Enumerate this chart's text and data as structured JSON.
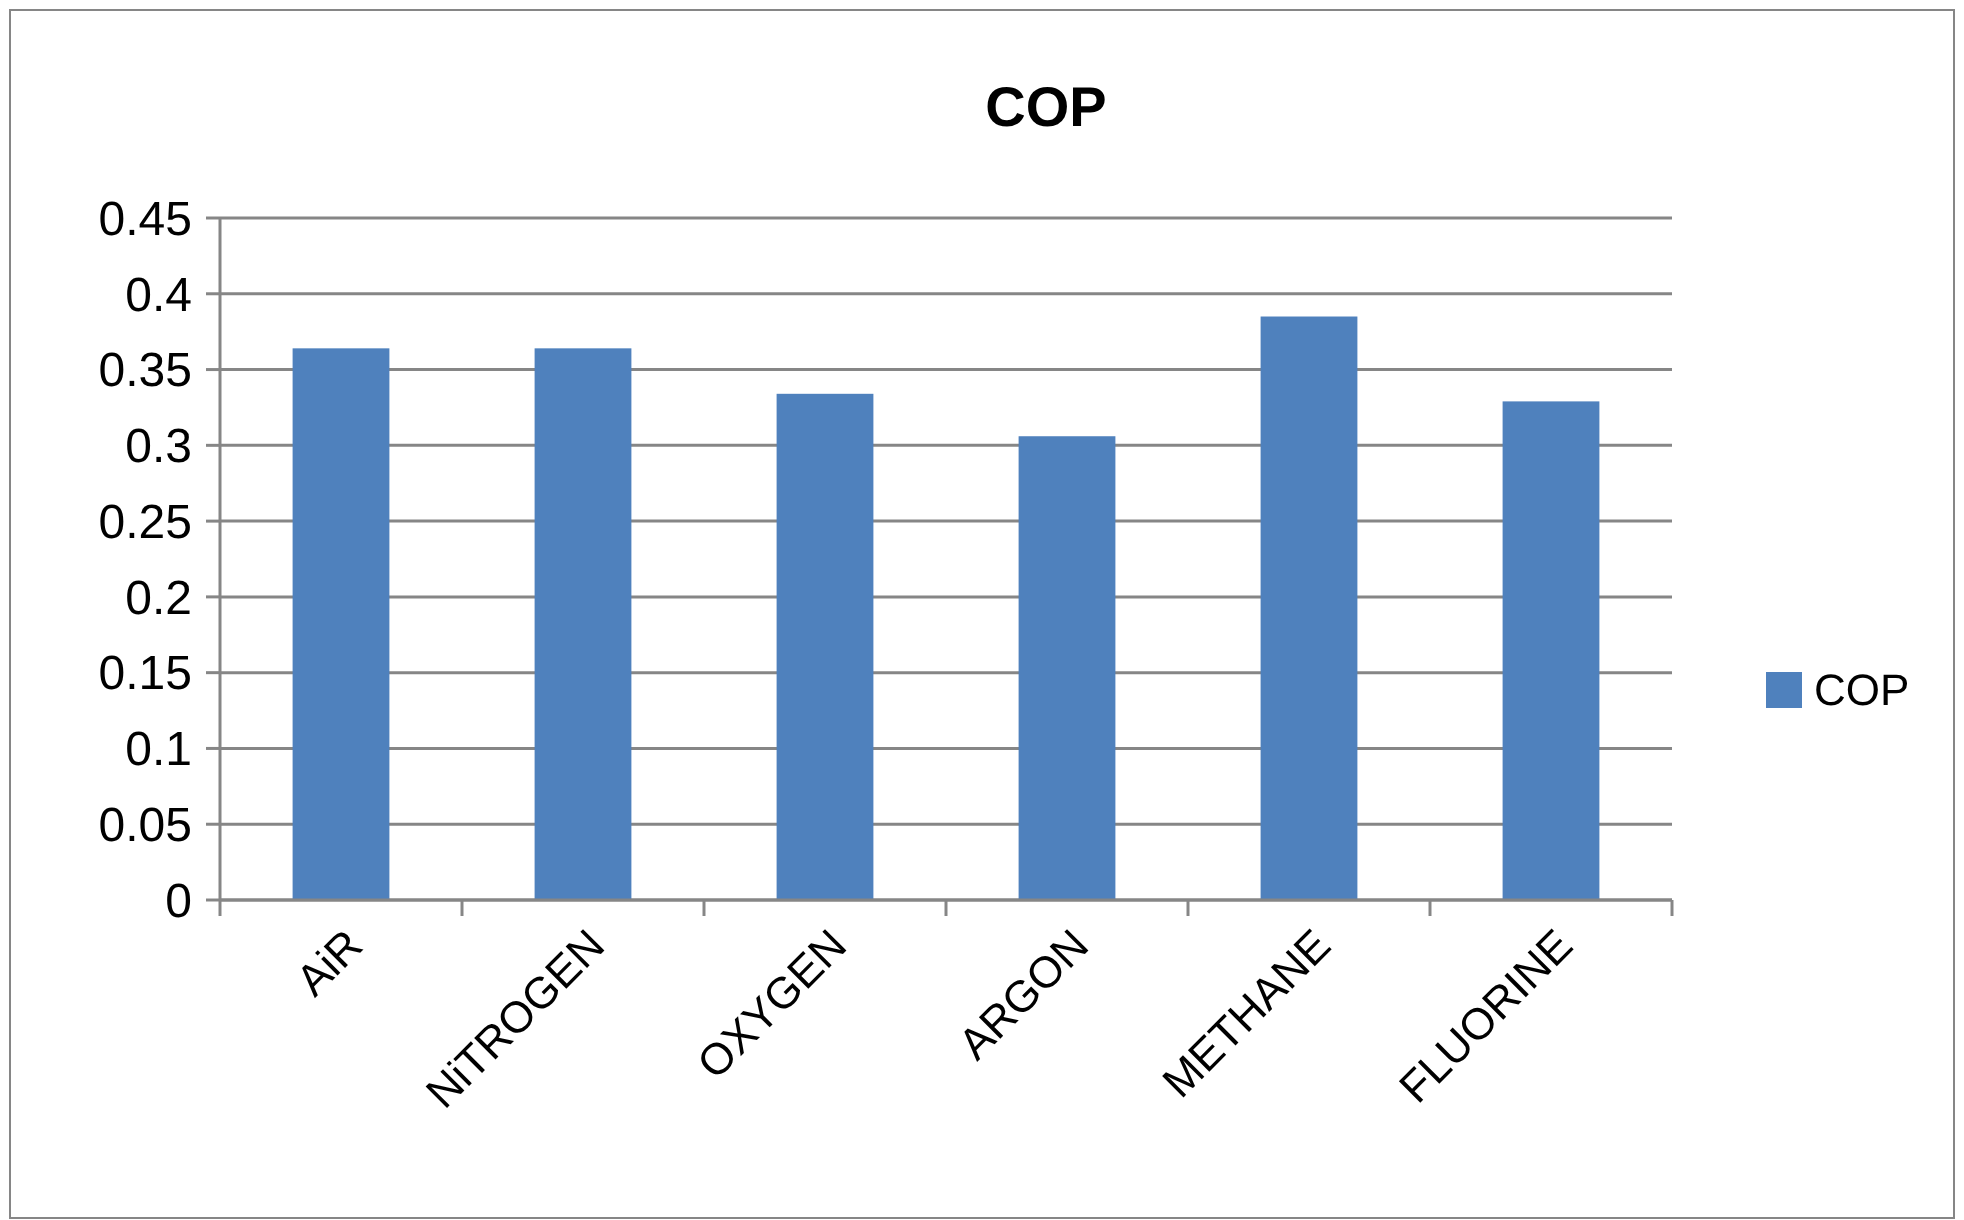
{
  "chart_data": {
    "type": "bar",
    "title": "COP",
    "categories": [
      "AiR",
      "NiTROGEN",
      "OXYGEN",
      "ARGON",
      "METHANE",
      "FLUORINE"
    ],
    "series": [
      {
        "name": "COP",
        "color": "#4f81bd",
        "values": [
          0.364,
          0.364,
          0.334,
          0.306,
          0.385,
          0.329
        ]
      }
    ],
    "ylim": [
      0,
      0.45
    ],
    "yticks": [
      0,
      0.05,
      0.1,
      0.15,
      0.2,
      0.25,
      0.3,
      0.35,
      0.4,
      0.45
    ],
    "grid": "y",
    "legend": "right"
  }
}
